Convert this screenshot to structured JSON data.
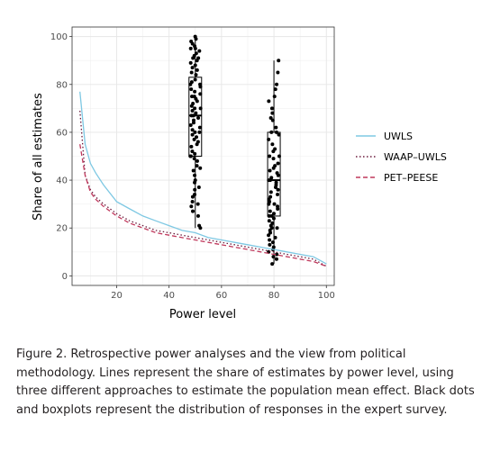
{
  "chart_data": {
    "type": "line",
    "xlabel": "Power level",
    "ylabel": "Share of all estimates",
    "xlim": [
      3,
      103
    ],
    "ylim": [
      -4,
      104
    ],
    "x_ticks": [
      20,
      40,
      60,
      80,
      100
    ],
    "y_ticks": [
      0,
      20,
      40,
      60,
      80,
      100
    ],
    "grid": true,
    "legend_position": "right",
    "series": [
      {
        "name": "UWLS",
        "style": "solid",
        "color": "#7ec8e3",
        "x": [
          6,
          8,
          10,
          12,
          15,
          20,
          25,
          30,
          35,
          40,
          45,
          50,
          55,
          60,
          65,
          70,
          75,
          80,
          85,
          90,
          95,
          100
        ],
        "y": [
          77,
          55,
          47,
          43,
          38,
          31,
          28,
          25,
          23,
          21,
          19,
          18,
          16,
          15,
          14,
          13,
          12,
          11,
          10,
          9,
          8,
          5
        ]
      },
      {
        "name": "WAAP–UWLS",
        "style": "dotted",
        "color": "#6b1a3c",
        "x": [
          6,
          8,
          10,
          12,
          15,
          20,
          25,
          30,
          35,
          40,
          45,
          50,
          55,
          60,
          65,
          70,
          75,
          80,
          85,
          90,
          95,
          100
        ],
        "y": [
          69,
          42,
          36,
          33,
          30,
          26,
          23,
          21,
          19,
          18,
          17,
          16,
          15,
          14,
          13,
          12,
          11,
          10,
          9,
          8,
          7,
          4
        ]
      },
      {
        "name": "PET–PEESE",
        "style": "dashed",
        "color": "#c0385c",
        "x": [
          6,
          8,
          10,
          12,
          15,
          20,
          25,
          30,
          35,
          40,
          45,
          50,
          55,
          60,
          65,
          70,
          75,
          80,
          85,
          90,
          95,
          100
        ],
        "y": [
          55,
          42,
          35,
          32,
          29,
          25,
          22,
          20,
          18,
          17,
          16,
          15,
          14,
          13,
          12,
          11,
          10,
          9,
          8,
          7,
          6,
          4
        ]
      }
    ],
    "boxplots": [
      {
        "x": 50,
        "q1": 50,
        "median": 67,
        "q3": 83,
        "whisker_low": 20,
        "whisker_high": 100
      },
      {
        "x": 80,
        "q1": 25,
        "median": 40,
        "q3": 60,
        "whisker_low": 5,
        "whisker_high": 90
      }
    ],
    "survey_points": [
      {
        "x": 50,
        "y": [
          100,
          99,
          98,
          97,
          96,
          95,
          95,
          94,
          93,
          92,
          91,
          91,
          90,
          89,
          88,
          87,
          86,
          85,
          84,
          82,
          81,
          80,
          80,
          79,
          78,
          77,
          76,
          75,
          75,
          74,
          73,
          72,
          71,
          70,
          70,
          69,
          68,
          67,
          67,
          66,
          65,
          64,
          63,
          62,
          61,
          60,
          60,
          59,
          58,
          57,
          56,
          55,
          54,
          52,
          51,
          50,
          50,
          49,
          48,
          46,
          45,
          44,
          42,
          40,
          39,
          37,
          36,
          34,
          33,
          31,
          30,
          29,
          27,
          25,
          21,
          20
        ]
      },
      {
        "x": 80,
        "y": [
          90,
          85,
          80,
          78,
          75,
          73,
          70,
          68,
          66,
          65,
          62,
          60,
          60,
          59,
          57,
          55,
          53,
          52,
          50,
          50,
          49,
          47,
          46,
          45,
          44,
          43,
          42,
          41,
          40,
          40,
          39,
          38,
          37,
          36,
          35,
          34,
          33,
          32,
          31,
          30,
          30,
          29,
          28,
          27,
          26,
          25,
          25,
          24,
          23,
          22,
          21,
          20,
          20,
          19,
          18,
          17,
          16,
          15,
          14,
          13,
          12,
          11,
          10,
          9,
          8,
          7,
          5
        ]
      }
    ]
  },
  "caption": "Figure 2. Retrospective power analyses and the view from political methodology. Lines represent the share of estimates by power level, using three different approaches to estimate the population mean effect. Black dots and boxplots represent the distribution of responses in the expert survey."
}
